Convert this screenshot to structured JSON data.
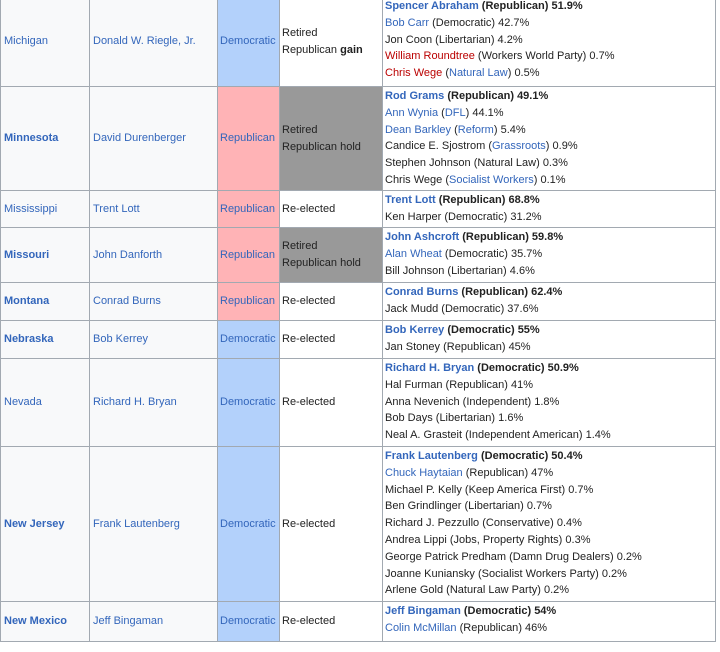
{
  "rows": [
    {
      "state": "Michigan",
      "state_bold": false,
      "state_link": true,
      "incumbent": "Donald W. Riegle, Jr.",
      "party": "Democratic",
      "party_class": "dem",
      "result_lines": [
        "Retired",
        "Republican"
      ],
      "result_extra": "gain",
      "result_class": "",
      "height": 90,
      "candidates": [
        {
          "name": "Spencer Abraham",
          "party": "Republican",
          "pct": "51.9%",
          "winner": true,
          "name_style": "link",
          "party_style": "plain"
        },
        {
          "name": "Bob Carr",
          "party": "Democratic",
          "pct": "42.7%",
          "winner": false,
          "name_style": "link",
          "party_style": "plain"
        },
        {
          "name": "Jon Coon",
          "party": "Libertarian",
          "pct": "4.2%",
          "winner": false,
          "name_style": "plain",
          "party_style": "plain"
        },
        {
          "name": "William Roundtree",
          "party": "Workers World Party",
          "pct": "0.7%",
          "winner": false,
          "name_style": "red",
          "party_style": "plain"
        },
        {
          "name": "Chris Wege",
          "party": "Natural Law",
          "pct": "0.5%",
          "winner": false,
          "name_style": "red",
          "party_style": "link"
        }
      ]
    },
    {
      "state": "Minnesota",
      "state_bold": true,
      "state_link": true,
      "incumbent": "David Durenberger",
      "party": "Republican",
      "party_class": "rep",
      "result_lines": [
        "Retired",
        "Republican hold"
      ],
      "result_extra": "",
      "result_class": "hold",
      "height": 104,
      "candidates": [
        {
          "name": "Rod Grams",
          "party": "Republican",
          "pct": "49.1%",
          "winner": true,
          "name_style": "link",
          "party_style": "plain"
        },
        {
          "name": "Ann Wynia",
          "party": "DFL",
          "pct": "44.1%",
          "winner": false,
          "name_style": "link",
          "party_style": "link"
        },
        {
          "name": "Dean Barkley",
          "party": "Reform",
          "pct": "5.4%",
          "winner": false,
          "name_style": "link",
          "party_style": "link"
        },
        {
          "name": "Candice E. Sjostrom",
          "party": "Grassroots",
          "pct": "0.9%",
          "winner": false,
          "name_style": "plain",
          "party_style": "link"
        },
        {
          "name": "Stephen Johnson",
          "party": "Natural Law",
          "pct": "0.3%",
          "winner": false,
          "name_style": "plain",
          "party_style": "plain"
        },
        {
          "name": "Chris Wege",
          "party": "Socialist Workers",
          "pct": "0.1%",
          "winner": false,
          "name_style": "plain",
          "party_style": "link"
        }
      ]
    },
    {
      "state": "Mississippi",
      "state_bold": false,
      "state_link": true,
      "incumbent": "Trent Lott",
      "party": "Republican",
      "party_class": "rep",
      "result_lines": [
        "Re-elected"
      ],
      "result_extra": "",
      "result_class": "",
      "height": 37,
      "candidates": [
        {
          "name": "Trent Lott",
          "party": "Republican",
          "pct": "68.8%",
          "winner": true,
          "name_style": "link",
          "party_style": "plain"
        },
        {
          "name": "Ken Harper",
          "party": "Democratic",
          "pct": "31.2%",
          "winner": false,
          "name_style": "plain",
          "party_style": "plain"
        }
      ]
    },
    {
      "state": "Missouri",
      "state_bold": true,
      "state_link": true,
      "incumbent": "John Danforth",
      "party": "Republican",
      "party_class": "rep",
      "result_lines": [
        "Retired",
        "Republican hold"
      ],
      "result_extra": "",
      "result_class": "hold",
      "height": 55,
      "candidates": [
        {
          "name": "John Ashcroft",
          "party": "Republican",
          "pct": "59.8%",
          "winner": true,
          "name_style": "link",
          "party_style": "plain"
        },
        {
          "name": "Alan Wheat",
          "party": "Democratic",
          "pct": "35.7%",
          "winner": false,
          "name_style": "link",
          "party_style": "plain"
        },
        {
          "name": "Bill Johnson",
          "party": "Libertarian",
          "pct": "4.6%",
          "winner": false,
          "name_style": "plain",
          "party_style": "plain"
        }
      ]
    },
    {
      "state": "Montana",
      "state_bold": true,
      "state_link": true,
      "incumbent": "Conrad Burns",
      "party": "Republican",
      "party_class": "rep",
      "result_lines": [
        "Re-elected"
      ],
      "result_extra": "",
      "result_class": "",
      "height": 38,
      "candidates": [
        {
          "name": "Conrad Burns",
          "party": "Republican",
          "pct": "62.4%",
          "winner": true,
          "name_style": "link",
          "party_style": "plain"
        },
        {
          "name": "Jack Mudd",
          "party": "Democratic",
          "pct": "37.6%",
          "winner": false,
          "name_style": "plain",
          "party_style": "plain"
        }
      ]
    },
    {
      "state": "Nebraska",
      "state_bold": true,
      "state_link": true,
      "incumbent": "Bob Kerrey",
      "party": "Democratic",
      "party_class": "dem",
      "result_lines": [
        "Re-elected"
      ],
      "result_extra": "",
      "result_class": "",
      "height": 38,
      "candidates": [
        {
          "name": "Bob Kerrey",
          "party": "Democratic",
          "pct": "55%",
          "winner": true,
          "name_style": "link",
          "party_style": "plain"
        },
        {
          "name": "Jan Stoney",
          "party": "Republican",
          "pct": "45%",
          "winner": false,
          "name_style": "plain",
          "party_style": "plain"
        }
      ]
    },
    {
      "state": "Nevada",
      "state_bold": false,
      "state_link": true,
      "incumbent": "Richard H. Bryan",
      "party": "Democratic",
      "party_class": "dem",
      "result_lines": [
        "Re-elected"
      ],
      "result_extra": "",
      "result_class": "",
      "height": 88,
      "candidates": [
        {
          "name": "Richard H. Bryan",
          "party": "Democratic",
          "pct": "50.9%",
          "winner": true,
          "name_style": "link",
          "party_style": "plain"
        },
        {
          "name": "Hal Furman",
          "party": "Republican",
          "pct": "41%",
          "winner": false,
          "name_style": "plain",
          "party_style": "plain"
        },
        {
          "name": "Anna Nevenich",
          "party": "Independent",
          "pct": "1.8%",
          "winner": false,
          "name_style": "plain",
          "party_style": "plain"
        },
        {
          "name": "Bob Days",
          "party": "Libertarian",
          "pct": "1.6%",
          "winner": false,
          "name_style": "plain",
          "party_style": "plain"
        },
        {
          "name": "Neal A. Grasteit",
          "party": "Independent American",
          "pct": "1.4%",
          "winner": false,
          "name_style": "plain",
          "party_style": "plain"
        }
      ]
    },
    {
      "state": "New Jersey",
      "state_bold": true,
      "state_link": true,
      "incumbent": "Frank Lautenberg",
      "party": "Democratic",
      "party_class": "dem",
      "result_lines": [
        "Re-elected"
      ],
      "result_extra": "",
      "result_class": "",
      "height": 155,
      "candidates": [
        {
          "name": "Frank Lautenberg",
          "party": "Democratic",
          "pct": "50.4%",
          "winner": true,
          "name_style": "link",
          "party_style": "plain"
        },
        {
          "name": "Chuck Haytaian",
          "party": "Republican",
          "pct": "47%",
          "winner": false,
          "name_style": "link",
          "party_style": "plain"
        },
        {
          "name": "Michael P. Kelly",
          "party": "Keep America First",
          "pct": "0.7%",
          "winner": false,
          "name_style": "plain",
          "party_style": "plain"
        },
        {
          "name": "Ben Grindlinger",
          "party": "Libertarian",
          "pct": "0.7%",
          "winner": false,
          "name_style": "plain",
          "party_style": "plain"
        },
        {
          "name": "Richard J. Pezzullo",
          "party": "Conservative",
          "pct": "0.4%",
          "winner": false,
          "name_style": "plain",
          "party_style": "plain"
        },
        {
          "name": "Andrea Lippi",
          "party": "Jobs, Property Rights",
          "pct": "0.3%",
          "winner": false,
          "name_style": "plain",
          "party_style": "plain"
        },
        {
          "name": "George Patrick Predham",
          "party": "Damn Drug Dealers",
          "pct": "0.2%",
          "winner": false,
          "name_style": "plain",
          "party_style": "plain"
        },
        {
          "name": "Joanne Kuniansky",
          "party": "Socialist Workers Party",
          "pct": "0.2%",
          "winner": false,
          "name_style": "plain",
          "party_style": "plain"
        },
        {
          "name": "Arlene Gold",
          "party": "Natural Law Party",
          "pct": "0.2%",
          "winner": false,
          "name_style": "plain",
          "party_style": "plain"
        }
      ]
    },
    {
      "state": "New Mexico",
      "state_bold": true,
      "state_link": true,
      "incumbent": "Jeff Bingaman",
      "party": "Democratic",
      "party_class": "dem",
      "result_lines": [
        "Re-elected"
      ],
      "result_extra": "",
      "result_class": "",
      "height": 40,
      "candidates": [
        {
          "name": "Jeff Bingaman",
          "party": "Democratic",
          "pct": "54%",
          "winner": true,
          "name_style": "link",
          "party_style": "plain"
        },
        {
          "name": "Colin McMillan",
          "party": "Republican",
          "pct": "46%",
          "winner": false,
          "name_style": "link",
          "party_style": "plain"
        }
      ]
    }
  ]
}
